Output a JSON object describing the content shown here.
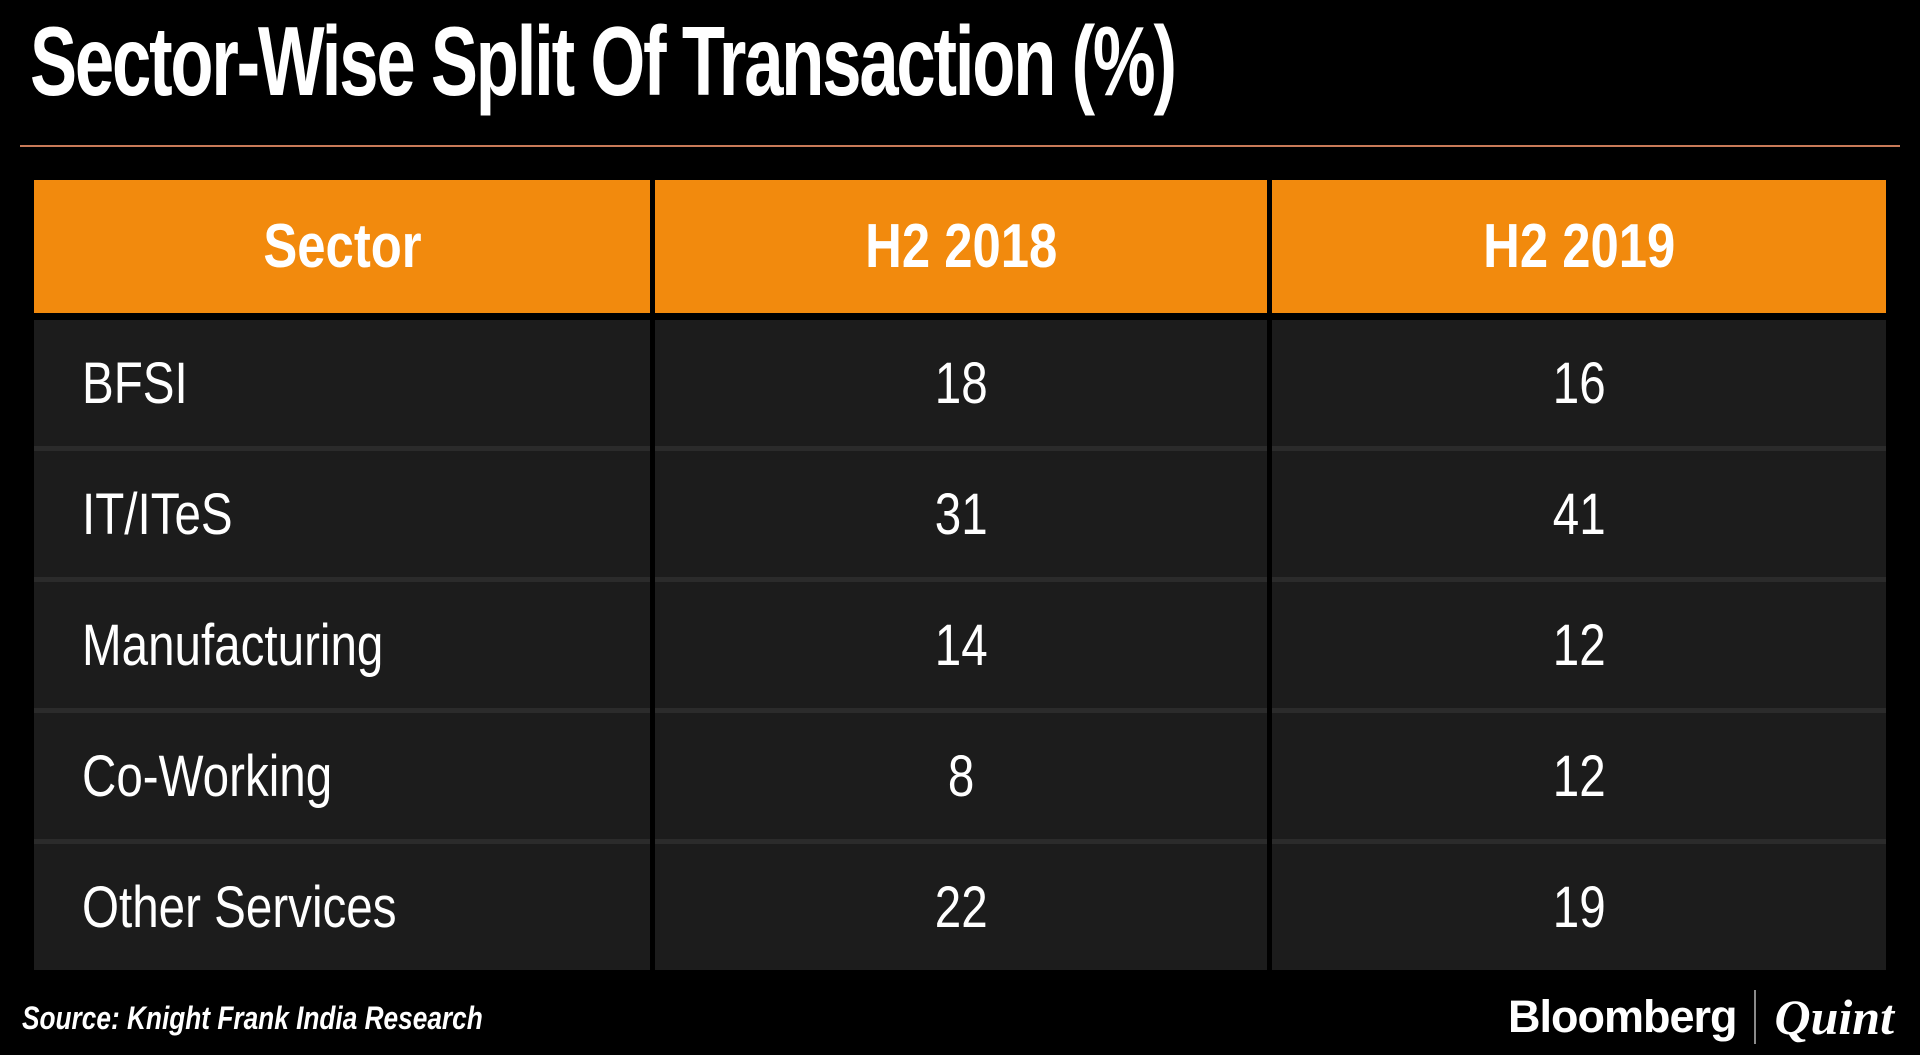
{
  "title": "Sector-Wise Split Of Transaction (%)",
  "table": {
    "columns": [
      "Sector",
      "H2 2018",
      "H2 2019"
    ],
    "rows": [
      [
        "BFSI",
        "18",
        "16"
      ],
      [
        "IT/ITeS",
        "31",
        "41"
      ],
      [
        "Manufacturing",
        "14",
        "12"
      ],
      [
        "Co-Working",
        "8",
        "12"
      ],
      [
        "Other Services",
        "22",
        "19"
      ]
    ]
  },
  "footer": {
    "source": "Source: Knight Frank India Research",
    "brand_primary": "Bloomberg",
    "brand_secondary": "Quint"
  },
  "colors": {
    "background": "#000000",
    "header_orange": "#f28a0d",
    "row_background": "#1c1c1c",
    "row_divider": "#2b2b2b",
    "title_rule": "#c87a58",
    "text": "#ffffff"
  },
  "chart_data": {
    "type": "table",
    "title": "Sector-Wise Split Of Transaction (%)",
    "categories": [
      "BFSI",
      "IT/ITeS",
      "Manufacturing",
      "Co-Working",
      "Other Services"
    ],
    "series": [
      {
        "name": "H2 2018",
        "values": [
          18,
          31,
          14,
          8,
          22
        ]
      },
      {
        "name": "H2 2019",
        "values": [
          16,
          41,
          12,
          12,
          19
        ]
      }
    ],
    "value_unit": "%",
    "source": "Source: Knight Frank India Research"
  }
}
